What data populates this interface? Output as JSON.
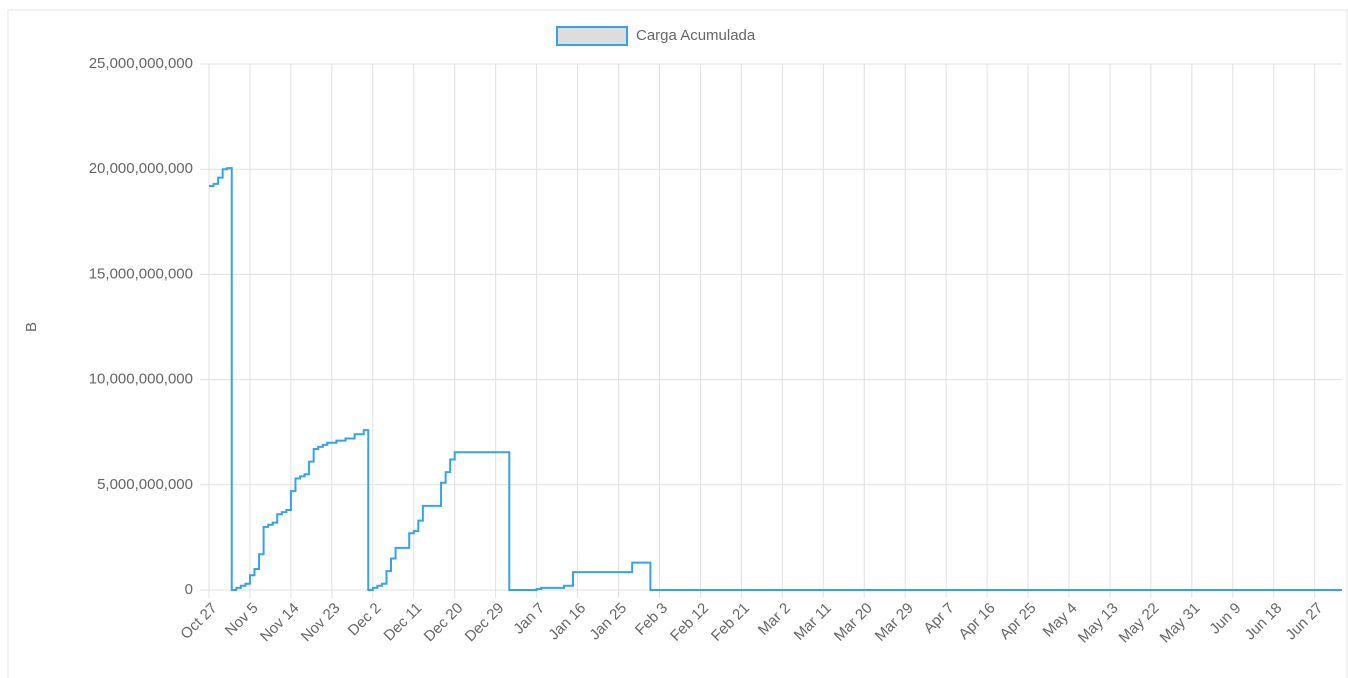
{
  "chart_data": {
    "type": "line",
    "stepped": true,
    "y_label": "B",
    "grid": true,
    "legend": "top",
    "xlim": [
      "Oct 27",
      "Jul 3"
    ],
    "xticks": [
      "Oct 27",
      "Nov 5",
      "Nov 14",
      "Nov 23",
      "Dec 2",
      "Dec 11",
      "Dec 20",
      "Dec 29",
      "Jan 7",
      "Jan 16",
      "Jan 25",
      "Feb 3",
      "Feb 12",
      "Feb 21",
      "Mar 2",
      "Mar 11",
      "Mar 20",
      "Mar 29",
      "Apr 7",
      "Apr 16",
      "Apr 25",
      "May 4",
      "May 13",
      "May 22",
      "May 31",
      "Jun 9",
      "Jun 18",
      "Jun 27"
    ],
    "ylim": [
      0,
      25000000000
    ],
    "yticks": [
      0,
      {
        "value": 5000000000,
        "label": "5,000,000,000"
      },
      {
        "value": 10000000000,
        "label": "10,000,000,000"
      },
      {
        "value": 15000000000,
        "label": "15,000,000,000"
      },
      {
        "value": 20000000000,
        "label": "20,000,000,000"
      },
      {
        "value": 25000000000,
        "label": "25,000,000,000"
      }
    ],
    "x": [
      "Oct 27",
      "Oct 28",
      "Oct 29",
      "Oct 30",
      "Oct 31",
      "Nov 1",
      "Nov 2",
      "Nov 3",
      "Nov 4",
      "Nov 5",
      "Nov 6",
      "Nov 7",
      "Nov 8",
      "Nov 9",
      "Nov 10",
      "Nov 11",
      "Nov 12",
      "Nov 13",
      "Nov 14",
      "Nov 15",
      "Nov 16",
      "Nov 17",
      "Nov 18",
      "Nov 19",
      "Nov 20",
      "Nov 21",
      "Nov 22",
      "Nov 24",
      "Nov 26",
      "Nov 28",
      "Nov 30",
      "Dec 1",
      "Dec 2",
      "Dec 3",
      "Dec 4",
      "Dec 5",
      "Dec 6",
      "Dec 7",
      "Dec 10",
      "Dec 11",
      "Dec 12",
      "Dec 13",
      "Dec 17",
      "Dec 18",
      "Dec 19",
      "Dec 20",
      "Jan 1",
      "Jan 7",
      "Jan 8",
      "Jan 13",
      "Jan 15",
      "Jan 28",
      "Feb 1",
      "Jul 3"
    ],
    "series": [
      {
        "name": "Carga Acumulada",
        "color": "#36a2eb",
        "fill": "#dddddd",
        "values": [
          19200000000,
          19300000000,
          19600000000,
          20000000000,
          20050000000,
          0,
          100000000,
          200000000,
          300000000,
          700000000,
          1000000000,
          1700000000,
          3000000000,
          3100000000,
          3200000000,
          3600000000,
          3700000000,
          3800000000,
          4700000000,
          5300000000,
          5400000000,
          5500000000,
          6100000000,
          6700000000,
          6800000000,
          6900000000,
          7000000000,
          7100000000,
          7200000000,
          7400000000,
          7600000000,
          0,
          100000000,
          200000000,
          300000000,
          900000000,
          1500000000,
          2000000000,
          2700000000,
          2800000000,
          3300000000,
          4000000000,
          5100000000,
          5600000000,
          6200000000,
          6550000000,
          0,
          50000000,
          100000000,
          200000000,
          850000000,
          1300000000,
          0,
          0
        ]
      }
    ]
  }
}
